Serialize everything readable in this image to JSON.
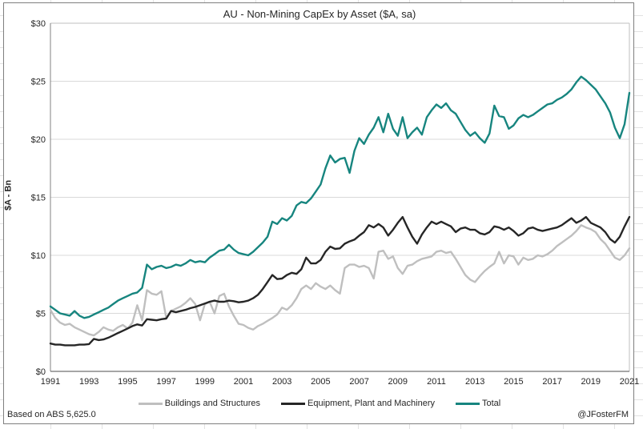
{
  "chart": {
    "title": "AU - Non-Mining CapEx by Asset ($A, sa)",
    "footnote": "Based on ABS 5,625.0",
    "credit": "@JFosterFM"
  },
  "chart_data": {
    "type": "line",
    "title": "AU - Non-Mining CapEx by Asset ($A, sa)",
    "xlabel": "",
    "ylabel": "$A - Bn",
    "ylim": [
      0,
      30
    ],
    "y_ticks": [
      0,
      5,
      10,
      15,
      20,
      25,
      30
    ],
    "y_tick_prefix": "$",
    "x_start": 1991,
    "x_step_years": 0.25,
    "x_ticks": [
      1991,
      1993,
      1995,
      1997,
      1999,
      2001,
      2003,
      2005,
      2007,
      2009,
      2011,
      2013,
      2015,
      2017,
      2019,
      2021
    ],
    "grid": "horizontal",
    "legend_position": "bottom",
    "frequency": "quarterly",
    "period": "1991Q1-2021Q1",
    "series": [
      {
        "name": "Buildings and Structures",
        "color": "#bfbfbf",
        "values": [
          5.3,
          4.6,
          4.2,
          4.0,
          4.1,
          3.8,
          3.6,
          3.4,
          3.2,
          3.1,
          3.4,
          3.8,
          3.6,
          3.5,
          3.8,
          4.0,
          3.7,
          4.2,
          5.7,
          4.4,
          7.0,
          6.7,
          6.6,
          6.9,
          4.6,
          5.2,
          5.4,
          5.6,
          5.9,
          6.3,
          5.8,
          4.4,
          5.8,
          6.0,
          5.0,
          6.5,
          6.7,
          5.6,
          4.8,
          4.1,
          4.0,
          3.75,
          3.6,
          3.9,
          4.1,
          4.35,
          4.6,
          4.9,
          5.5,
          5.3,
          5.7,
          6.3,
          7.1,
          7.4,
          7.1,
          7.6,
          7.3,
          7.1,
          7.4,
          7.0,
          6.7,
          8.9,
          9.2,
          9.2,
          9.0,
          9.1,
          8.9,
          8.0,
          10.3,
          10.4,
          9.7,
          9.9,
          8.9,
          8.4,
          9.1,
          9.2,
          9.5,
          9.7,
          9.8,
          9.9,
          10.3,
          10.4,
          10.2,
          10.3,
          9.7,
          9.0,
          8.3,
          7.9,
          7.7,
          8.2,
          8.65,
          9.0,
          9.3,
          10.3,
          9.3,
          10.0,
          9.9,
          9.2,
          9.8,
          9.6,
          9.7,
          10.0,
          9.9,
          10.1,
          10.4,
          10.8,
          11.1,
          11.4,
          11.7,
          12.1,
          12.6,
          12.4,
          12.25,
          12.0,
          11.4,
          11.0,
          10.4,
          9.8,
          9.6,
          10.0,
          10.6
        ]
      },
      {
        "name": "Equipment, Plant and Machinery",
        "color": "#262626",
        "values": [
          2.4,
          2.3,
          2.3,
          2.25,
          2.25,
          2.25,
          2.3,
          2.3,
          2.35,
          2.8,
          2.7,
          2.75,
          2.9,
          3.1,
          3.3,
          3.5,
          3.7,
          3.9,
          4.05,
          3.95,
          4.5,
          4.45,
          4.4,
          4.5,
          4.55,
          5.2,
          5.1,
          5.2,
          5.3,
          5.45,
          5.55,
          5.7,
          5.85,
          6.0,
          6.1,
          6.0,
          6.0,
          6.1,
          6.05,
          5.95,
          6.0,
          6.1,
          6.3,
          6.6,
          7.1,
          7.7,
          8.3,
          7.95,
          8.0,
          8.3,
          8.5,
          8.4,
          8.8,
          9.8,
          9.3,
          9.3,
          9.6,
          10.3,
          10.75,
          10.55,
          10.6,
          11.0,
          11.2,
          11.35,
          11.7,
          12.0,
          12.6,
          12.4,
          12.7,
          12.4,
          11.7,
          12.2,
          12.8,
          13.3,
          12.4,
          11.6,
          11.0,
          11.8,
          12.4,
          12.9,
          12.7,
          12.9,
          12.7,
          12.5,
          12.0,
          12.3,
          12.4,
          12.2,
          12.2,
          11.9,
          11.8,
          12.0,
          12.5,
          12.4,
          12.2,
          12.4,
          12.1,
          11.7,
          11.9,
          12.3,
          12.4,
          12.2,
          12.1,
          12.2,
          12.3,
          12.4,
          12.6,
          12.9,
          13.2,
          12.8,
          13.0,
          13.3,
          12.8,
          12.6,
          12.4,
          12.0,
          11.4,
          11.1,
          11.6,
          12.5,
          13.3
        ]
      },
      {
        "name": "Total",
        "color": "#17857f",
        "values": [
          5.6,
          5.3,
          5.0,
          4.9,
          4.8,
          5.2,
          4.8,
          4.6,
          4.7,
          4.9,
          5.1,
          5.3,
          5.5,
          5.8,
          6.1,
          6.3,
          6.5,
          6.7,
          6.8,
          7.2,
          9.2,
          8.8,
          9.0,
          9.1,
          8.9,
          9.0,
          9.2,
          9.1,
          9.3,
          9.6,
          9.4,
          9.5,
          9.4,
          9.8,
          10.1,
          10.4,
          10.5,
          10.9,
          10.5,
          10.2,
          10.1,
          10.0,
          10.3,
          10.7,
          11.1,
          11.6,
          12.9,
          12.7,
          13.2,
          13.0,
          13.4,
          14.3,
          14.6,
          14.5,
          14.9,
          15.5,
          16.1,
          17.5,
          18.6,
          18.0,
          18.3,
          18.4,
          17.1,
          19.0,
          20.1,
          19.6,
          20.4,
          21.0,
          21.9,
          20.6,
          22.2,
          20.9,
          20.3,
          21.9,
          20.1,
          20.6,
          21.0,
          20.4,
          21.9,
          22.5,
          23.0,
          22.7,
          23.1,
          22.5,
          22.2,
          21.5,
          20.8,
          20.3,
          20.6,
          20.1,
          19.7,
          20.5,
          22.9,
          22.0,
          21.9,
          20.9,
          21.2,
          21.8,
          22.1,
          21.9,
          22.1,
          22.4,
          22.7,
          23.0,
          23.1,
          23.4,
          23.6,
          23.9,
          24.3,
          24.9,
          25.4,
          25.1,
          24.7,
          24.3,
          23.7,
          23.1,
          22.3,
          21.0,
          20.1,
          21.3,
          24.0
        ]
      }
    ]
  }
}
